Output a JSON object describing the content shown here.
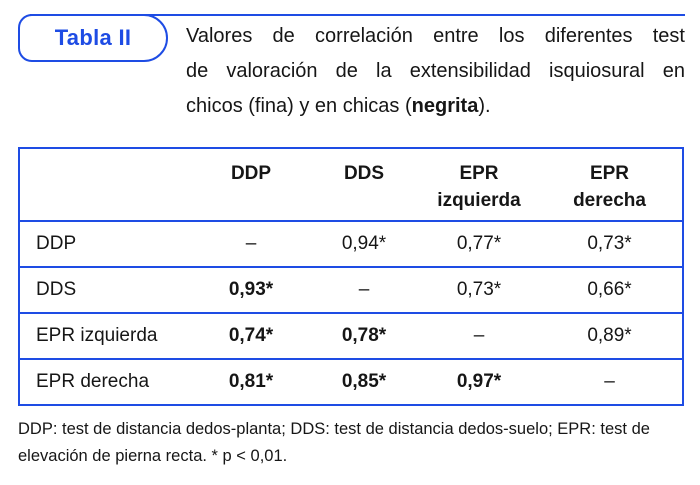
{
  "colors": {
    "accent_blue": "#1e4ce4",
    "text": "#161616"
  },
  "badge": {
    "label": "Tabla II"
  },
  "title": {
    "line1": "Valores de correlación entre los diferentes test",
    "line2": "de valoración de la extensibilidad isquiosural en",
    "line3_before": "chicos (fina) y en chicas (",
    "line3_bold": "negrita",
    "line3_after": ")."
  },
  "table": {
    "column_headers": [
      "",
      "DDP",
      "DDS",
      "EPR\nizquierda",
      "EPR\nderecha"
    ],
    "rows": [
      {
        "label": "DDP",
        "cells": [
          {
            "text": "–",
            "bold": false
          },
          {
            "text": "0,94*",
            "bold": false
          },
          {
            "text": "0,77*",
            "bold": false
          },
          {
            "text": "0,73*",
            "bold": false
          }
        ]
      },
      {
        "label": "DDS",
        "cells": [
          {
            "text": "0,93*",
            "bold": true
          },
          {
            "text": "–",
            "bold": false
          },
          {
            "text": "0,73*",
            "bold": false
          },
          {
            "text": "0,66*",
            "bold": false
          }
        ]
      },
      {
        "label": "EPR izquierda",
        "cells": [
          {
            "text": "0,74*",
            "bold": true
          },
          {
            "text": "0,78*",
            "bold": true
          },
          {
            "text": "–",
            "bold": false
          },
          {
            "text": "0,89*",
            "bold": false
          }
        ]
      },
      {
        "label": "EPR derecha",
        "cells": [
          {
            "text": "0,81*",
            "bold": true
          },
          {
            "text": "0,85*",
            "bold": true
          },
          {
            "text": "0,97*",
            "bold": true
          },
          {
            "text": "–",
            "bold": false
          }
        ]
      }
    ]
  },
  "footnote": {
    "line1": "DDP: test de distancia dedos-planta; DDS: test de distancia dedos-suelo; EPR: test de",
    "line2": "elevación de pierna recta. * p < 0,01."
  }
}
